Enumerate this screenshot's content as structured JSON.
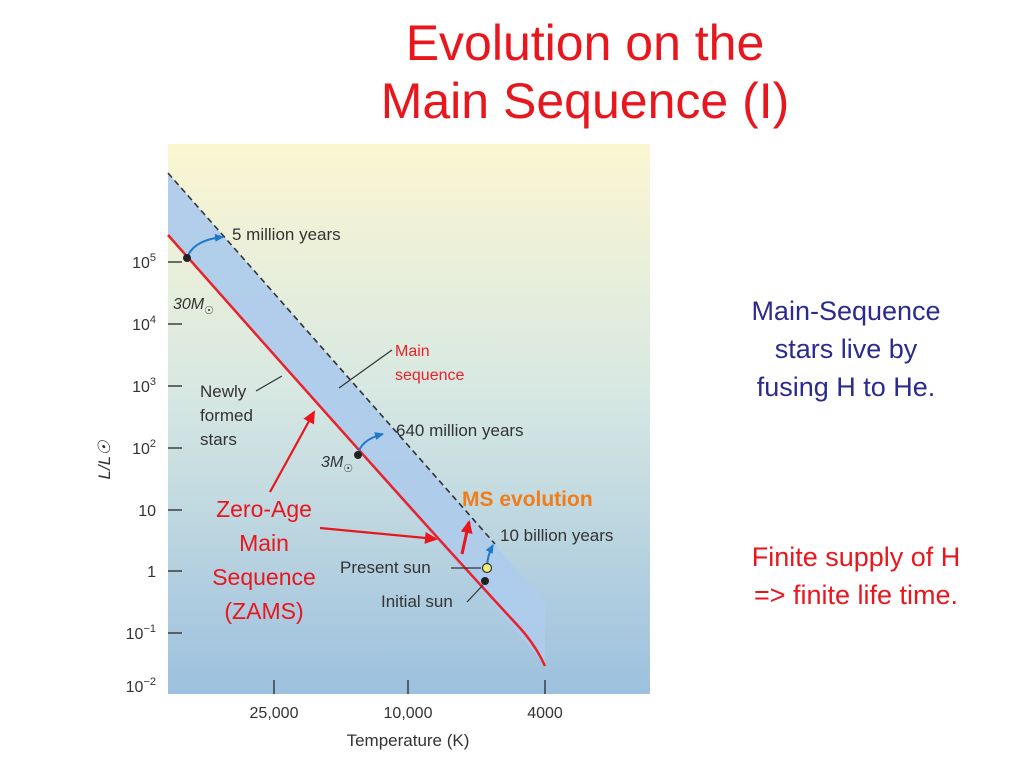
{
  "slide": {
    "title_lines": [
      "Evolution on the",
      "Main Sequence (I)"
    ],
    "note_blue_lines": [
      "Main-Sequence",
      "stars live by",
      "fusing H to He."
    ],
    "note_red_lines": [
      "Finite supply of H",
      "=> finite life time."
    ]
  },
  "colors": {
    "title": "#e8161d",
    "note_blue": "#2b2b8f",
    "zams_line": "#e8222a",
    "band": "#aecbeb",
    "arrow_blue": "#1f78c8",
    "ms_evolution": "#f07d1a",
    "annotation_red": "#e8161d"
  },
  "chart_data": {
    "type": "line",
    "xlabel": "Temperature (K)",
    "ylabel": "L/L☉",
    "x_scale": "log-reversed",
    "y_scale": "log",
    "xlim": [
      45000,
      2900
    ],
    "ylim": [
      0.01,
      1000000
    ],
    "x_ticks": [
      {
        "value": 25000,
        "label": "25,000"
      },
      {
        "value": 10000,
        "label": "10,000"
      },
      {
        "value": 4000,
        "label": "4000"
      }
    ],
    "y_ticks": [
      {
        "value": 100000,
        "base": "10",
        "exp": "5"
      },
      {
        "value": 10000,
        "base": "10",
        "exp": "4"
      },
      {
        "value": 1000,
        "base": "10",
        "exp": "3"
      },
      {
        "value": 100,
        "base": "10",
        "exp": "2"
      },
      {
        "value": 10,
        "base": "10",
        "exp": ""
      },
      {
        "value": 1,
        "base": "1",
        "exp": ""
      },
      {
        "value": 0.1,
        "base": "10",
        "exp": "−1"
      },
      {
        "value": 0.01,
        "base": "10",
        "exp": "−2"
      }
    ],
    "series": [
      {
        "name": "Zero-Age Main Sequence",
        "x": [
          43000,
          30000,
          20000,
          13000,
          9000,
          6500,
          5400,
          4700,
          4300,
          4000
        ],
        "y": [
          300000,
          80000,
          12000,
          1200,
          100,
          8,
          1.1,
          0.2,
          0.05,
          0.02
        ]
      },
      {
        "name": "Main sequence",
        "x": [
          43000,
          30000,
          20000,
          13000,
          9000,
          6000,
          5000,
          4000
        ],
        "y": [
          600000,
          250000,
          50000,
          4500,
          400,
          10,
          3,
          0.3
        ]
      }
    ],
    "points": [
      {
        "label": "30M☉",
        "x": 33000,
        "y": 100000
      },
      {
        "label": "3M☉",
        "x": 9200,
        "y": 80
      },
      {
        "label": "Initial sun",
        "x": 5500,
        "y": 0.7
      },
      {
        "label": "Present sun",
        "x": 5400,
        "y": 1.0
      }
    ],
    "annotations": [
      {
        "text": "5 million years"
      },
      {
        "text": "640 million years"
      },
      {
        "text": "10 billion years"
      },
      {
        "text": "Newly formed stars"
      },
      {
        "text": "Main sequence"
      },
      {
        "text": "Present sun"
      },
      {
        "text": "Initial sun"
      },
      {
        "text": "MS evolution"
      },
      {
        "text": "Zero-Age Main Sequence (ZAMS)"
      }
    ],
    "labels": {
      "five_my": "5 million years",
      "six40_my": "640 million years",
      "ten_by": "10 billion years",
      "newly": [
        "Newly",
        "formed",
        "stars"
      ],
      "main_seq": [
        "Main",
        "sequence"
      ],
      "present_sun": "Present sun",
      "initial_sun": "Initial sun",
      "ms_evolution": "MS evolution",
      "zams": [
        "Zero-Age",
        "Main",
        "Sequence",
        "(ZAMS)"
      ],
      "mass30": "30M",
      "mass3": "3M"
    }
  }
}
